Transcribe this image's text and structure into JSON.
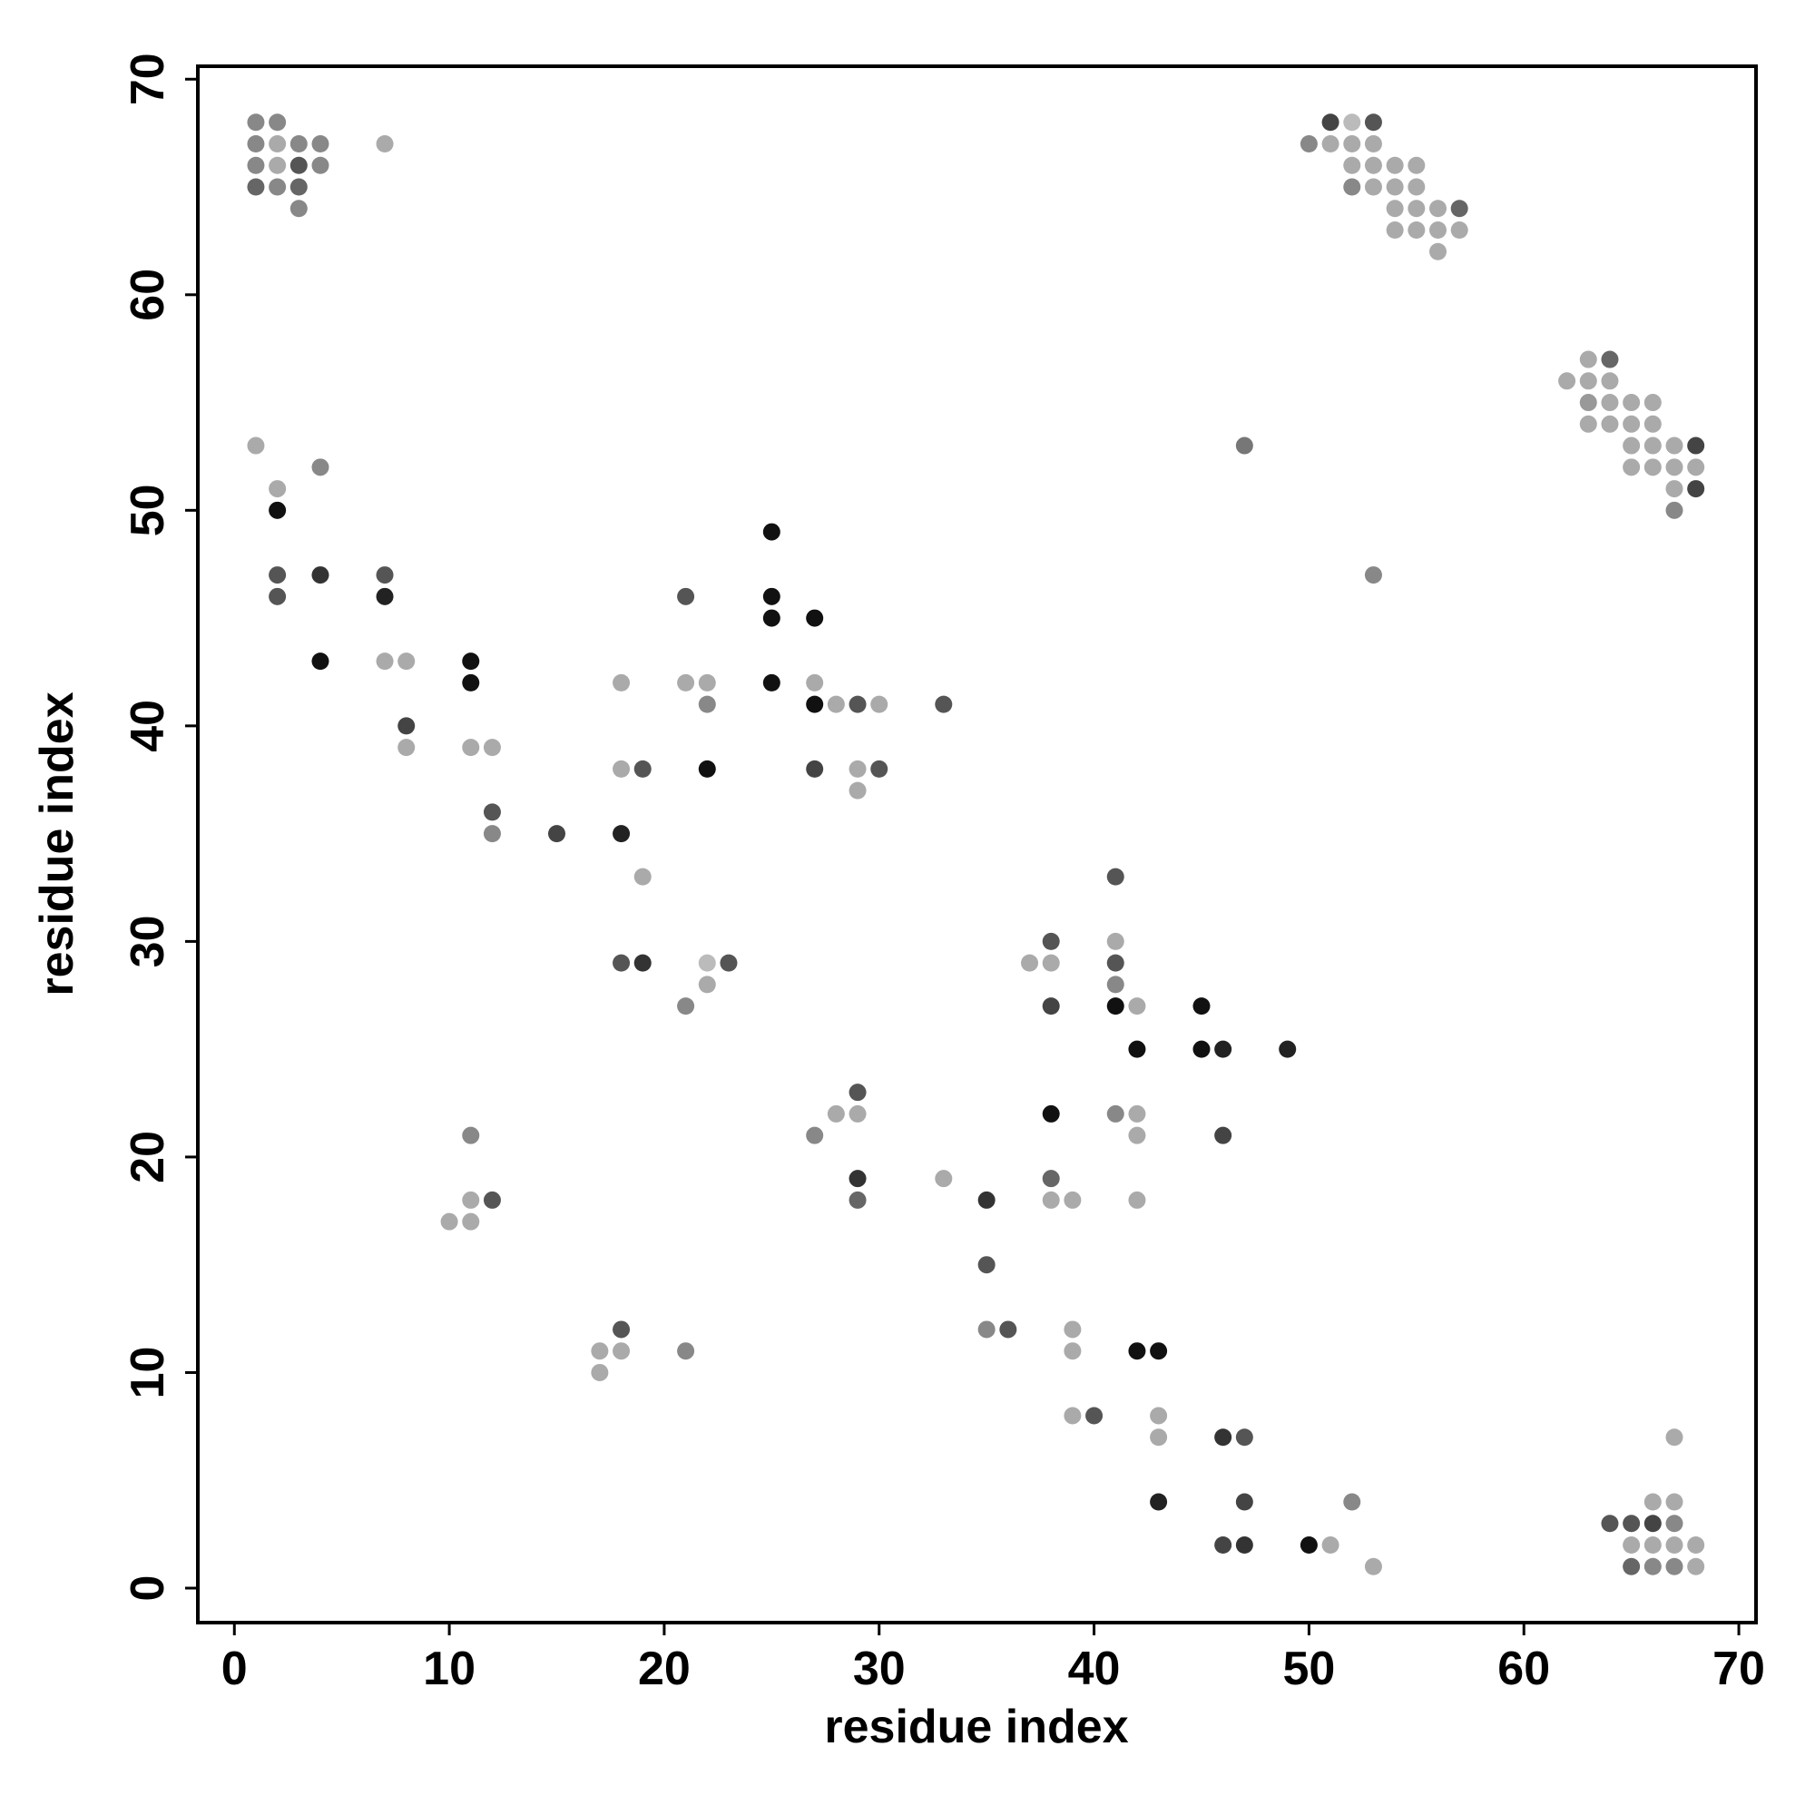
{
  "chart_data": {
    "type": "scatter",
    "xlabel": "residue index",
    "ylabel": "residue index",
    "xlim": [
      -1.7,
      70.8
    ],
    "ylim": [
      -1.6,
      70.6
    ],
    "xticks": [
      0,
      10,
      20,
      30,
      40,
      50,
      60,
      70
    ],
    "yticks": [
      0,
      10,
      20,
      30,
      40,
      50,
      60,
      70
    ],
    "x": [
      1,
      2,
      51,
      52,
      53,
      1,
      2,
      3,
      4,
      7,
      50,
      51,
      52,
      53,
      1,
      2,
      3,
      4,
      52,
      53,
      54,
      55,
      1,
      2,
      3,
      52,
      53,
      54,
      55,
      3,
      54,
      55,
      56,
      57,
      54,
      55,
      56,
      57,
      56,
      63,
      64,
      62,
      63,
      64,
      63,
      64,
      65,
      66,
      63,
      64,
      65,
      66,
      1,
      47,
      65,
      66,
      67,
      68,
      4,
      65,
      66,
      67,
      68,
      2,
      67,
      68,
      2,
      67,
      25,
      2,
      4,
      7,
      53,
      2,
      7,
      21,
      25,
      25,
      27,
      4,
      7,
      8,
      11,
      11,
      18,
      21,
      22,
      25,
      27,
      22,
      27,
      28,
      29,
      30,
      33,
      8,
      8,
      11,
      12,
      18,
      19,
      22,
      27,
      29,
      30,
      29,
      12,
      12,
      15,
      18,
      19,
      41,
      38,
      41,
      18,
      19,
      22,
      23,
      37,
      38,
      41,
      22,
      41,
      21,
      38,
      41,
      42,
      45,
      42,
      45,
      46,
      49,
      29,
      28,
      29,
      38,
      41,
      42,
      11,
      27,
      42,
      46,
      29,
      33,
      38,
      11,
      12,
      29,
      35,
      38,
      39,
      42,
      10,
      11,
      35,
      18,
      35,
      36,
      39,
      17,
      18,
      21,
      39,
      42,
      43,
      17,
      39,
      40,
      43,
      43,
      46,
      47,
      67,
      43,
      47,
      52,
      66,
      67,
      64,
      65,
      66,
      67,
      46,
      47,
      50,
      51,
      65,
      66,
      67,
      68,
      53,
      65,
      66,
      67,
      68
    ],
    "y": [
      68,
      68,
      68,
      68,
      68,
      67,
      67,
      67,
      67,
      67,
      67,
      67,
      67,
      67,
      66,
      66,
      66,
      66,
      66,
      66,
      66,
      66,
      65,
      65,
      65,
      65,
      65,
      65,
      65,
      64,
      64,
      64,
      64,
      64,
      63,
      63,
      63,
      63,
      62,
      57,
      57,
      56,
      56,
      56,
      55,
      55,
      55,
      55,
      54,
      54,
      54,
      54,
      53,
      53,
      53,
      53,
      53,
      53,
      52,
      52,
      52,
      52,
      52,
      51,
      51,
      51,
      50,
      50,
      49,
      47,
      47,
      47,
      47,
      46,
      46,
      46,
      46,
      45,
      45,
      43,
      43,
      43,
      43,
      42,
      42,
      42,
      42,
      42,
      42,
      41,
      41,
      41,
      41,
      41,
      41,
      40,
      39,
      39,
      39,
      38,
      38,
      38,
      38,
      38,
      38,
      37,
      36,
      35,
      35,
      35,
      33,
      33,
      30,
      30,
      29,
      29,
      29,
      29,
      29,
      29,
      29,
      28,
      28,
      27,
      27,
      27,
      27,
      27,
      25,
      25,
      25,
      25,
      23,
      22,
      22,
      22,
      22,
      22,
      21,
      21,
      21,
      21,
      19,
      19,
      19,
      18,
      18,
      18,
      18,
      18,
      18,
      18,
      17,
      17,
      15,
      12,
      12,
      12,
      12,
      11,
      11,
      11,
      11,
      11,
      11,
      10,
      8,
      8,
      8,
      7,
      7,
      7,
      7,
      4,
      4,
      4,
      4,
      4,
      3,
      3,
      3,
      3,
      2,
      2,
      2,
      2,
      2,
      2,
      2,
      2,
      1,
      1,
      1,
      1,
      1
    ],
    "colors": [
      "#888",
      "#888",
      "#444",
      "#bbb",
      "#555",
      "#888",
      "#aaa",
      "#888",
      "#888",
      "#aaa",
      "#888",
      "#aaa",
      "#aaa",
      "#aaa",
      "#888",
      "#aaa",
      "#555",
      "#888",
      "#aaa",
      "#aaa",
      "#aaa",
      "#aaa",
      "#666",
      "#888",
      "#666",
      "#888",
      "#aaa",
      "#aaa",
      "#aaa",
      "#888",
      "#aaa",
      "#aaa",
      "#aaa",
      "#666",
      "#aaa",
      "#aaa",
      "#aaa",
      "#aaa",
      "#aaa",
      "#aaa",
      "#666",
      "#aaa",
      "#aaa",
      "#aaa",
      "#999",
      "#aaa",
      "#aaa",
      "#aaa",
      "#aaa",
      "#aaa",
      "#aaa",
      "#aaa",
      "#aaa",
      "#777",
      "#aaa",
      "#aaa",
      "#aaa",
      "#444",
      "#888",
      "#aaa",
      "#aaa",
      "#aaa",
      "#aaa",
      "#aaa",
      "#aaa",
      "#444",
      "#111",
      "#888",
      "#111",
      "#555",
      "#333",
      "#555",
      "#888",
      "#555",
      "#222",
      "#555",
      "#111",
      "#111",
      "#111",
      "#111",
      "#aaa",
      "#aaa",
      "#111",
      "#111",
      "#aaa",
      "#aaa",
      "#aaa",
      "#111",
      "#aaa",
      "#888",
      "#111",
      "#aaa",
      "#555",
      "#aaa",
      "#555",
      "#444",
      "#aaa",
      "#aaa",
      "#aaa",
      "#aaa",
      "#555",
      "#111",
      "#444",
      "#aaa",
      "#555",
      "#aaa",
      "#555",
      "#888",
      "#444",
      "#222",
      "#aaa",
      "#555",
      "#555",
      "#aaa",
      "#555",
      "#333",
      "#bbb",
      "#555",
      "#aaa",
      "#aaa",
      "#555",
      "#aaa",
      "#888",
      "#888",
      "#444",
      "#111",
      "#aaa",
      "#111",
      "#111",
      "#111",
      "#222",
      "#222",
      "#555",
      "#aaa",
      "#aaa",
      "#111",
      "#888",
      "#aaa",
      "#888",
      "#888",
      "#aaa",
      "#444",
      "#333",
      "#aaa",
      "#666",
      "#aaa",
      "#555",
      "#666",
      "#333",
      "#aaa",
      "#aaa",
      "#aaa",
      "#aaa",
      "#aaa",
      "#555",
      "#555",
      "#888",
      "#555",
      "#aaa",
      "#aaa",
      "#aaa",
      "#888",
      "#aaa",
      "#111",
      "#111",
      "#aaa",
      "#aaa",
      "#555",
      "#aaa",
      "#aaa",
      "#333",
      "#555",
      "#aaa",
      "#222",
      "#444",
      "#888",
      "#aaa",
      "#aaa",
      "#555",
      "#555",
      "#444",
      "#888",
      "#444",
      "#333",
      "#111",
      "#aaa",
      "#aaa",
      "#aaa",
      "#aaa",
      "#aaa",
      "#aaa",
      "#666",
      "#888",
      "#888",
      "#aaa"
    ]
  }
}
